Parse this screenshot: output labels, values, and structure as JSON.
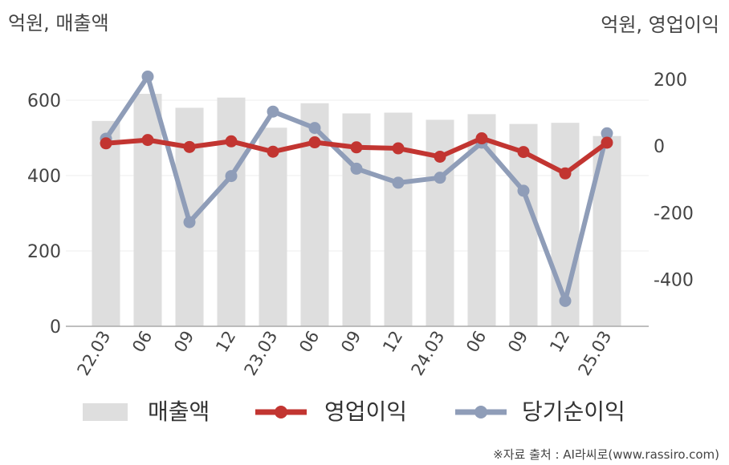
{
  "chart_data": {
    "type": "bar+line",
    "left_axis_unit": "억원, 매출액",
    "right_axis_unit": "억원, 영업이익",
    "categories": [
      "22.03",
      "06",
      "09",
      "12",
      "23.03",
      "06",
      "09",
      "12",
      "24.03",
      "06",
      "09",
      "12",
      "25.03"
    ],
    "left_axis": {
      "ylim": [
        0,
        700
      ],
      "ticks": [
        0,
        200,
        400,
        600
      ]
    },
    "right_axis": {
      "ylim": [
        -540,
        250
      ],
      "ticks": [
        -400,
        -200,
        0,
        200
      ]
    },
    "series": [
      {
        "name": "매출액",
        "type": "bar",
        "axis": "left",
        "color": "#dedede",
        "values": [
          545,
          617,
          580,
          607,
          527,
          592,
          565,
          567,
          548,
          563,
          537,
          540,
          505
        ]
      },
      {
        "name": "영업이익",
        "type": "line",
        "axis": "right",
        "color": "#c23531",
        "values": [
          8,
          18,
          -3,
          14,
          -17,
          11,
          -4,
          -7,
          -32,
          23,
          -18,
          -82,
          10
        ]
      },
      {
        "name": "당기순이익",
        "type": "line",
        "axis": "right",
        "color": "#8f9db8",
        "values": [
          22,
          208,
          -228,
          -90,
          103,
          54,
          -68,
          -110,
          -95,
          10,
          -134,
          -464,
          38
        ]
      }
    ],
    "grid": true,
    "legend_position": "bottom"
  },
  "source": "※자료 출처 : AI라씨로(www.rassiro.com)"
}
